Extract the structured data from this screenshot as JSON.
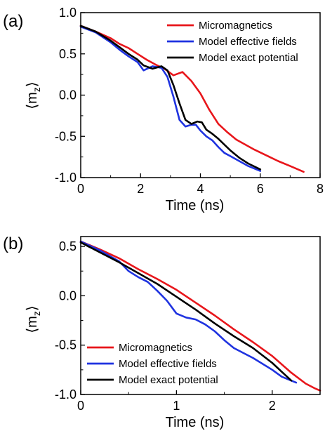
{
  "chart_data": [
    {
      "panel": "(a)",
      "type": "line",
      "xlabel": "Time (ns)",
      "ylabel": "⟨m",
      "ylabel_sub": "z",
      "ylabel_close": "⟩",
      "xlim": [
        0,
        8
      ],
      "ylim": [
        -1.0,
        1.0
      ],
      "xticks": [
        0,
        2,
        4,
        6,
        8
      ],
      "yticks": [
        1.0,
        0.5,
        0.0,
        -0.5,
        -1.0
      ],
      "xtick_labels": [
        "0",
        "2",
        "4",
        "6",
        "8"
      ],
      "ytick_labels": [
        "1.0",
        "0.5",
        "0.0",
        "-0.5",
        "-1.0"
      ],
      "legend_position": "top-right",
      "series": [
        {
          "name": "Micromagnetics",
          "color": "#e8161b",
          "x": [
            0.0,
            0.5,
            1.0,
            1.3,
            1.6,
            1.9,
            2.2,
            2.5,
            2.8,
            3.1,
            3.4,
            3.7,
            4.0,
            4.3,
            4.6,
            4.9,
            5.2,
            5.5,
            5.8,
            6.2,
            6.6,
            7.0,
            7.45
          ],
          "y": [
            0.84,
            0.77,
            0.69,
            0.62,
            0.57,
            0.5,
            0.43,
            0.37,
            0.32,
            0.24,
            0.28,
            0.17,
            0.02,
            -0.18,
            -0.35,
            -0.45,
            -0.54,
            -0.6,
            -0.66,
            -0.73,
            -0.8,
            -0.86,
            -0.93
          ]
        },
        {
          "name": "Model effective fields",
          "color": "#1f33e0",
          "x": [
            0.0,
            0.5,
            1.0,
            1.3,
            1.6,
            1.9,
            2.1,
            2.4,
            2.7,
            2.9,
            3.1,
            3.3,
            3.5,
            3.7,
            3.85,
            4.0,
            4.2,
            4.4,
            4.6,
            4.8,
            5.0,
            5.3,
            5.6,
            6.0
          ],
          "y": [
            0.83,
            0.76,
            0.64,
            0.55,
            0.47,
            0.4,
            0.3,
            0.35,
            0.33,
            0.22,
            -0.02,
            -0.3,
            -0.38,
            -0.36,
            -0.36,
            -0.43,
            -0.5,
            -0.55,
            -0.63,
            -0.7,
            -0.74,
            -0.8,
            -0.86,
            -0.92
          ]
        },
        {
          "name": "Model exact potential",
          "color": "#000000",
          "x": [
            0.0,
            0.5,
            1.0,
            1.3,
            1.6,
            1.9,
            2.1,
            2.4,
            2.7,
            2.9,
            3.1,
            3.3,
            3.5,
            3.7,
            3.9,
            4.05,
            4.2,
            4.4,
            4.6,
            4.8,
            5.0,
            5.3,
            5.6,
            6.0
          ],
          "y": [
            0.84,
            0.77,
            0.66,
            0.58,
            0.5,
            0.43,
            0.36,
            0.32,
            0.35,
            0.3,
            0.12,
            -0.1,
            -0.3,
            -0.35,
            -0.32,
            -0.33,
            -0.42,
            -0.47,
            -0.53,
            -0.6,
            -0.67,
            -0.76,
            -0.83,
            -0.9
          ]
        }
      ]
    },
    {
      "panel": "(b)",
      "type": "line",
      "xlabel": "Time (ns)",
      "ylabel": "⟨m",
      "ylabel_sub": "z",
      "ylabel_close": "⟩",
      "xlim": [
        0,
        2.5
      ],
      "ylim": [
        -1.0,
        0.6
      ],
      "xticks": [
        0,
        1,
        2
      ],
      "yticks": [
        0.5,
        0.0,
        -0.5,
        -1.0
      ],
      "xtick_labels": [
        "0",
        "1",
        "2"
      ],
      "ytick_labels": [
        "0.5",
        "0.0",
        "-0.5",
        "-1.0"
      ],
      "legend_position": "bottom-left",
      "series": [
        {
          "name": "Micromagnetics",
          "color": "#e8161b",
          "x": [
            0.0,
            0.2,
            0.4,
            0.6,
            0.8,
            1.0,
            1.2,
            1.4,
            1.6,
            1.8,
            2.0,
            2.2,
            2.35,
            2.45,
            2.5
          ],
          "y": [
            0.55,
            0.47,
            0.38,
            0.27,
            0.17,
            0.06,
            -0.07,
            -0.2,
            -0.34,
            -0.47,
            -0.61,
            -0.78,
            -0.89,
            -0.94,
            -0.96
          ]
        },
        {
          "name": "Model effective fields",
          "color": "#1f33e0",
          "x": [
            0.0,
            0.2,
            0.4,
            0.5,
            0.6,
            0.7,
            0.8,
            0.9,
            1.0,
            1.1,
            1.2,
            1.3,
            1.4,
            1.5,
            1.6,
            1.8,
            2.0,
            2.1,
            2.2,
            2.25
          ],
          "y": [
            0.55,
            0.46,
            0.35,
            0.25,
            0.19,
            0.14,
            0.05,
            -0.05,
            -0.18,
            -0.22,
            -0.24,
            -0.29,
            -0.36,
            -0.45,
            -0.53,
            -0.63,
            -0.75,
            -0.82,
            -0.86,
            -0.88
          ]
        },
        {
          "name": "Model exact potential",
          "color": "#000000",
          "x": [
            0.0,
            0.2,
            0.4,
            0.6,
            0.8,
            1.0,
            1.2,
            1.4,
            1.6,
            1.8,
            2.0,
            2.1,
            2.2
          ],
          "y": [
            0.54,
            0.44,
            0.34,
            0.23,
            0.12,
            -0.01,
            -0.14,
            -0.28,
            -0.41,
            -0.53,
            -0.68,
            -0.77,
            -0.86
          ]
        }
      ]
    }
  ]
}
